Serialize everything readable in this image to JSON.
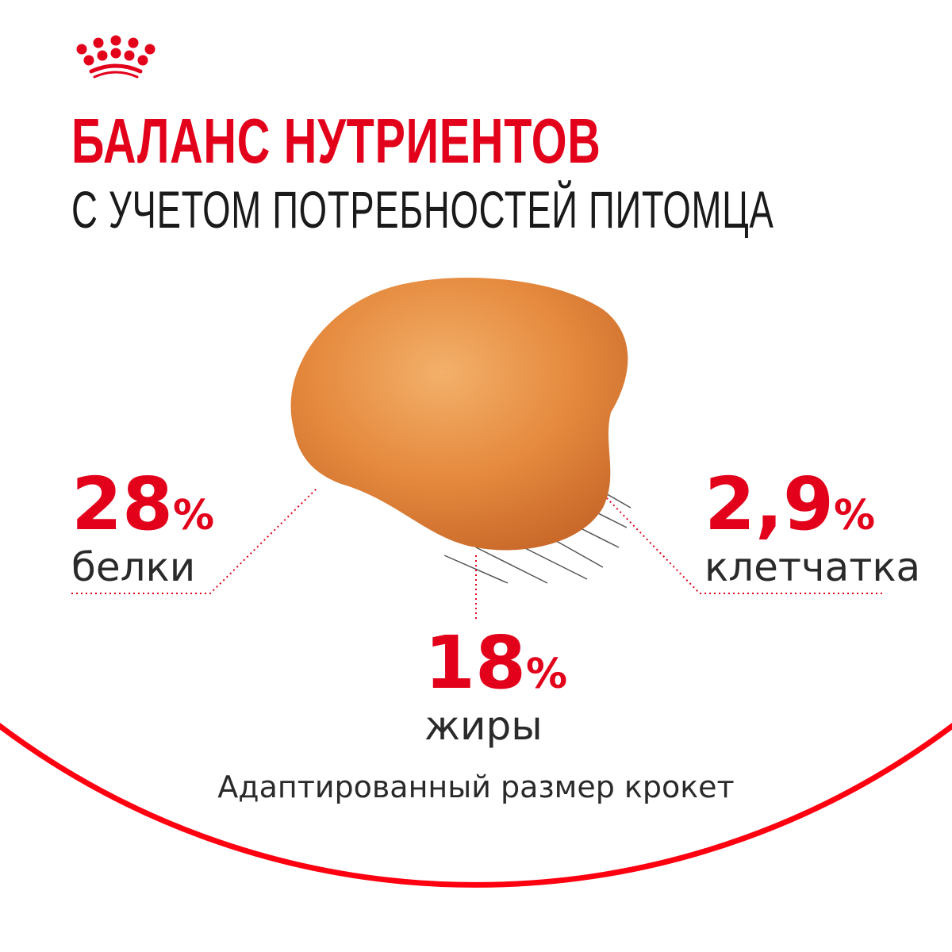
{
  "brand": {
    "logo": "crown-logo",
    "color": "#e2001a"
  },
  "header": {
    "title": "БАЛАНС НУТРИЕНТОВ",
    "subtitle": "С УЧЕТОМ ПОТРЕБНОСТЕЙ ПИТОМЦА"
  },
  "nutrients": [
    {
      "value": "28",
      "unit": "%",
      "label": "белки"
    },
    {
      "value": "18",
      "unit": "%",
      "label": "жиры"
    },
    {
      "value": "2,9",
      "unit": "%",
      "label": "клетчатка"
    }
  ],
  "footer": {
    "text": "Адаптированный размер крокет"
  },
  "colors": {
    "accent": "#e2001a",
    "text": "#2a2a2a",
    "kibble": "#e08a3c"
  }
}
